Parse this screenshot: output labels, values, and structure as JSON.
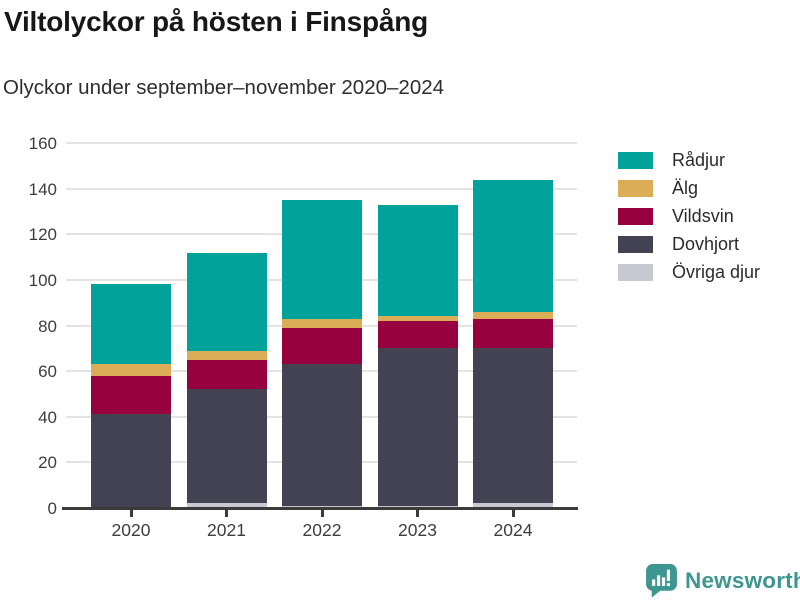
{
  "header": {
    "title": "Viltolyckor på hösten i Finspång",
    "subtitle": "Olyckor under september–november 2020–2024"
  },
  "chart_data": {
    "type": "bar",
    "stacked": true,
    "title": "Viltolyckor på hösten i Finspång",
    "subtitle": "Olyckor under september–november 2020–2024",
    "categories": [
      "2020",
      "2021",
      "2022",
      "2023",
      "2024"
    ],
    "series": [
      {
        "name": "Övriga djur",
        "color": "#c8c8d3",
        "values": [
          0,
          2,
          1,
          1,
          2
        ]
      },
      {
        "name": "Dovhjort",
        "color": "#424253",
        "values": [
          41,
          50,
          62,
          69,
          68
        ]
      },
      {
        "name": "Vildsvin",
        "color": "#98013f",
        "values": [
          17,
          13,
          16,
          12,
          13
        ]
      },
      {
        "name": "Älg",
        "color": "#dcad57",
        "values": [
          5,
          4,
          4,
          2,
          3
        ]
      },
      {
        "name": "Rådjur",
        "color": "#00a29a",
        "values": [
          35,
          43,
          52,
          49,
          58
        ]
      }
    ],
    "totals": [
      98,
      112,
      135,
      133,
      144
    ],
    "legend_order": [
      "Rådjur",
      "Älg",
      "Vildsvin",
      "Dovhjort",
      "Övriga djur"
    ],
    "legend_position": "right",
    "xlabel": "",
    "ylabel": "",
    "ylim": [
      0,
      160
    ],
    "yticks": [
      0,
      20,
      40,
      60,
      80,
      100,
      120,
      140,
      160
    ],
    "grid": true
  },
  "colors": {
    "gridline": "#e3e3e3",
    "axis": "#3b3b3b",
    "tick_text": "#3d3d3d",
    "title_text": "#171717",
    "brand_teal": "#3d968f"
  },
  "footer": {
    "brand": "Newsworthy"
  }
}
